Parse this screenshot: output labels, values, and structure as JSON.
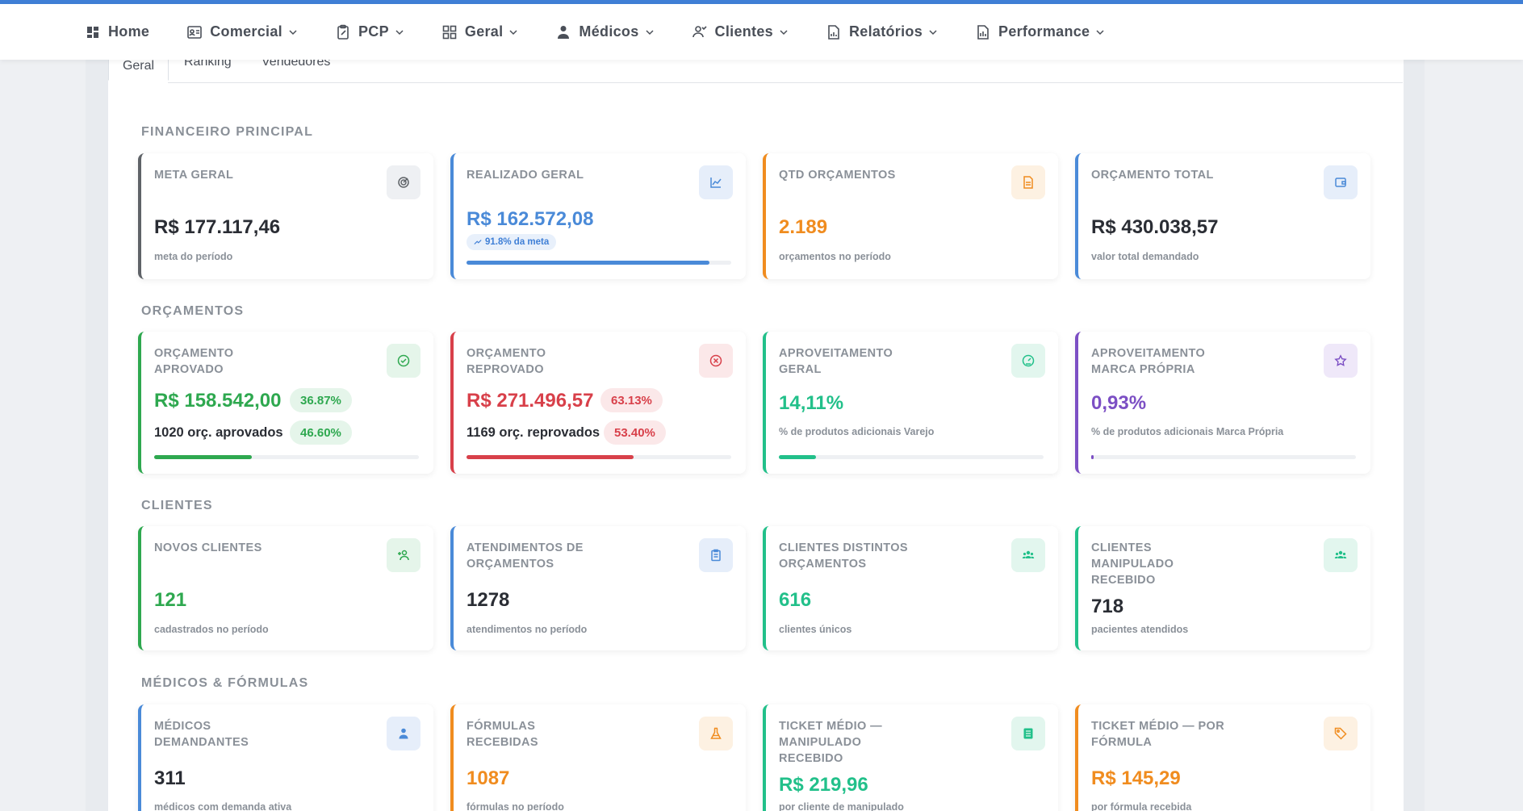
{
  "nav": {
    "items": [
      {
        "label": "Home",
        "icon": "dashboard-icon",
        "dropdown": false
      },
      {
        "label": "Comercial",
        "icon": "id-card-icon",
        "dropdown": true
      },
      {
        "label": "PCP",
        "icon": "clipboard-icon",
        "dropdown": true
      },
      {
        "label": "Geral",
        "icon": "grid-icon",
        "dropdown": true
      },
      {
        "label": "Médicos",
        "icon": "doctor-icon",
        "dropdown": true
      },
      {
        "label": "Clientes",
        "icon": "users-icon",
        "dropdown": true
      },
      {
        "label": "Relatórios",
        "icon": "report-icon",
        "dropdown": true
      },
      {
        "label": "Performance",
        "icon": "chart-file-icon",
        "dropdown": true
      }
    ]
  },
  "tabs": {
    "geral": "Geral",
    "ranking": "Ranking",
    "vendedores": "Vendedores",
    "active": "Geral"
  },
  "sections": {
    "financeiro": {
      "title": "FINANCEIRO PRINCIPAL",
      "cards": {
        "meta": {
          "label": "META GERAL",
          "value": "R$ 177.117,46",
          "sub": "meta do período",
          "icon": "target-icon",
          "accent": "#5f6368"
        },
        "realizado": {
          "label": "REALIZADO GERAL",
          "value": "R$ 162.572,08",
          "badge": "91.8% da meta",
          "progress": 0.918,
          "icon": "line-chart-icon",
          "accent": "#4a8ad8"
        },
        "qtd": {
          "label": "QTD ORÇAMENTOS",
          "value": "2.189",
          "sub": "orçamentos no período",
          "icon": "document-icon",
          "accent": "#f08c1f"
        },
        "total": {
          "label": "ORÇAMENTO TOTAL",
          "value": "R$ 430.038,57",
          "sub": "valor total demandado",
          "icon": "wallet-icon",
          "accent": "#4a8ad8"
        }
      }
    },
    "orcamentos": {
      "title": "ORÇAMENTOS",
      "cards": {
        "aprovado": {
          "label": "ORÇAMENTO APROVADO",
          "value": "R$ 158.542,00",
          "pct": "36.87%",
          "count": "1020 orç. aprovados",
          "count_pct": "46.60%",
          "progress": 0.3687,
          "icon": "check-circle-icon",
          "accent": "#2ea84f"
        },
        "reprovado": {
          "label": "ORÇAMENTO REPROVADO",
          "value": "R$ 271.496,57",
          "pct": "63.13%",
          "count": "1169 orç. reprovados",
          "count_pct": "53.40%",
          "progress": 0.6313,
          "icon": "x-circle-icon",
          "accent": "#d8404a"
        },
        "aproveitamento": {
          "label": "APROVEITAMENTO GERAL",
          "value": "14,11%",
          "sub": "% de produtos adicionais Varejo",
          "progress": 0.1411,
          "icon": "gauge-icon",
          "accent": "#22c08a"
        },
        "marca": {
          "label": "APROVEITAMENTO MARCA PRÓPRIA",
          "value": "0,93%",
          "sub": "% de produtos adicionais Marca Própria",
          "progress": 0.0093,
          "icon": "star-icon",
          "accent": "#7c4fc4"
        }
      }
    },
    "clientes": {
      "title": "CLIENTES",
      "cards": {
        "novos": {
          "label": "NOVOS CLIENTES",
          "value": "121",
          "sub": "cadastrados no período",
          "icon": "user-plus-icon",
          "accent": "#2ea84f"
        },
        "atendimentos": {
          "label": "ATENDIMENTOS DE ORÇAMENTOS",
          "value": "1278",
          "sub": "atendimentos no período",
          "icon": "clipboard-list-icon",
          "accent": "#4a8ad8"
        },
        "distintos": {
          "label": "CLIENTES DISTINTOS ORÇAMENTOS",
          "value": "616",
          "sub": "clientes únicos",
          "icon": "group-icon",
          "accent": "#22c08a"
        },
        "manipulado": {
          "label": "CLIENTES MANIPULADO RECEBIDO",
          "value": "718",
          "sub": "pacientes atendidos",
          "icon": "group-icon",
          "accent": "#22c08a"
        }
      }
    },
    "medicos": {
      "title": "MÉDICOS & FÓRMULAS",
      "cards": {
        "demandantes": {
          "label": "MÉDICOS DEMANDANTES",
          "value": "311",
          "sub": "médicos com demanda ativa",
          "icon": "doctor-icon",
          "accent": "#4a8ad8"
        },
        "formulas": {
          "label": "FÓRMULAS RECEBIDAS",
          "value": "1087",
          "sub": "fórmulas no período",
          "icon": "flask-icon",
          "accent": "#f08c1f"
        },
        "ticket_manip": {
          "label": "TICKET MÉDIO — MANIPULADO RECEBIDO",
          "value": "R$ 219,96",
          "sub": "por cliente de manipulado",
          "icon": "list-icon",
          "accent": "#22c08a"
        },
        "ticket_formula": {
          "label": "TICKET MÉDIO — POR FÓRMULA",
          "value": "R$ 145,29",
          "sub": "por fórmula recebida",
          "icon": "tag-icon",
          "accent": "#f08c1f"
        }
      }
    }
  }
}
